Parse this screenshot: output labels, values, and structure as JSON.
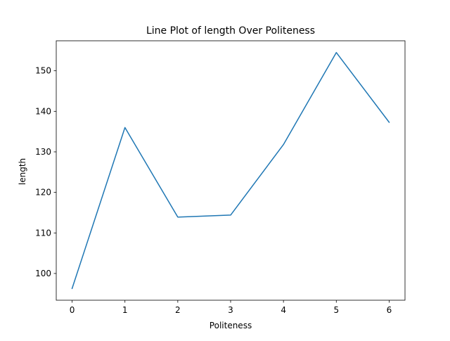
{
  "chart_data": {
    "type": "line",
    "title": "Line Plot of length Over Politeness",
    "xlabel": "Politeness",
    "ylabel": "length",
    "x": [
      0,
      1,
      2,
      3,
      4,
      5,
      6
    ],
    "series": [
      {
        "values": [
          96.3,
          136.0,
          113.9,
          114.4,
          131.8,
          154.5,
          137.3
        ],
        "color": "#1f77b4"
      }
    ],
    "xticks": [
      "0",
      "1",
      "2",
      "3",
      "4",
      "5",
      "6"
    ],
    "yticks": [
      "100",
      "110",
      "120",
      "130",
      "140",
      "150"
    ],
    "xlim": [
      -0.3,
      6.3
    ],
    "ylim": [
      93.4,
      157.4
    ],
    "grid": false,
    "legend": "none"
  }
}
